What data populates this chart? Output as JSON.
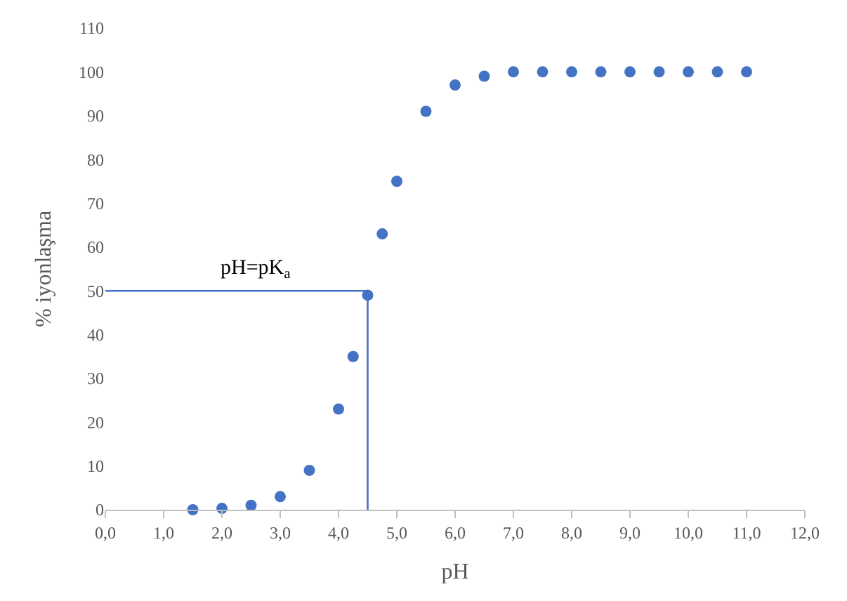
{
  "chart_data": {
    "type": "scatter",
    "xlabel": "pH",
    "ylabel": "% iyonlaşma",
    "marker": "circle",
    "xlim": [
      0,
      12
    ],
    "ylim": [
      0,
      110
    ],
    "xticks": [
      {
        "value": 0,
        "label": "0,0"
      },
      {
        "value": 1,
        "label": "1,0"
      },
      {
        "value": 2,
        "label": "2,0"
      },
      {
        "value": 3,
        "label": "3,0"
      },
      {
        "value": 4,
        "label": "4,0"
      },
      {
        "value": 5,
        "label": "5,0"
      },
      {
        "value": 6,
        "label": "6,0"
      },
      {
        "value": 7,
        "label": "7,0"
      },
      {
        "value": 8,
        "label": "8,0"
      },
      {
        "value": 9,
        "label": "9,0"
      },
      {
        "value": 10,
        "label": "10,0"
      },
      {
        "value": 11,
        "label": "11,0"
      },
      {
        "value": 12,
        "label": "12,0"
      }
    ],
    "yticks": [
      0,
      10,
      20,
      30,
      40,
      50,
      60,
      70,
      80,
      90,
      100,
      110
    ],
    "annotations": [
      "pH=pK$_{a}$"
    ],
    "series": [
      {
        "color": "#4472c4",
        "x": [
          1.5,
          2.0,
          2.5,
          3.0,
          3.5,
          4.0,
          4.25,
          4.5,
          4.75,
          5.0,
          5.5,
          6.0,
          6.5,
          7.0,
          7.5,
          8.0,
          8.5,
          9.0,
          9.5,
          10.0,
          10.5,
          11.0
        ],
        "values": [
          0,
          0.3,
          1,
          3,
          9,
          23,
          35,
          49,
          63,
          75,
          91,
          97,
          99,
          100,
          100,
          100,
          100,
          100,
          100,
          100,
          100,
          100
        ]
      },
      {
        "type": "line",
        "marker": "none",
        "color": "#4472c4",
        "x": [
          0,
          4.5,
          4.5
        ],
        "values": [
          50,
          50,
          0
        ]
      }
    ]
  }
}
